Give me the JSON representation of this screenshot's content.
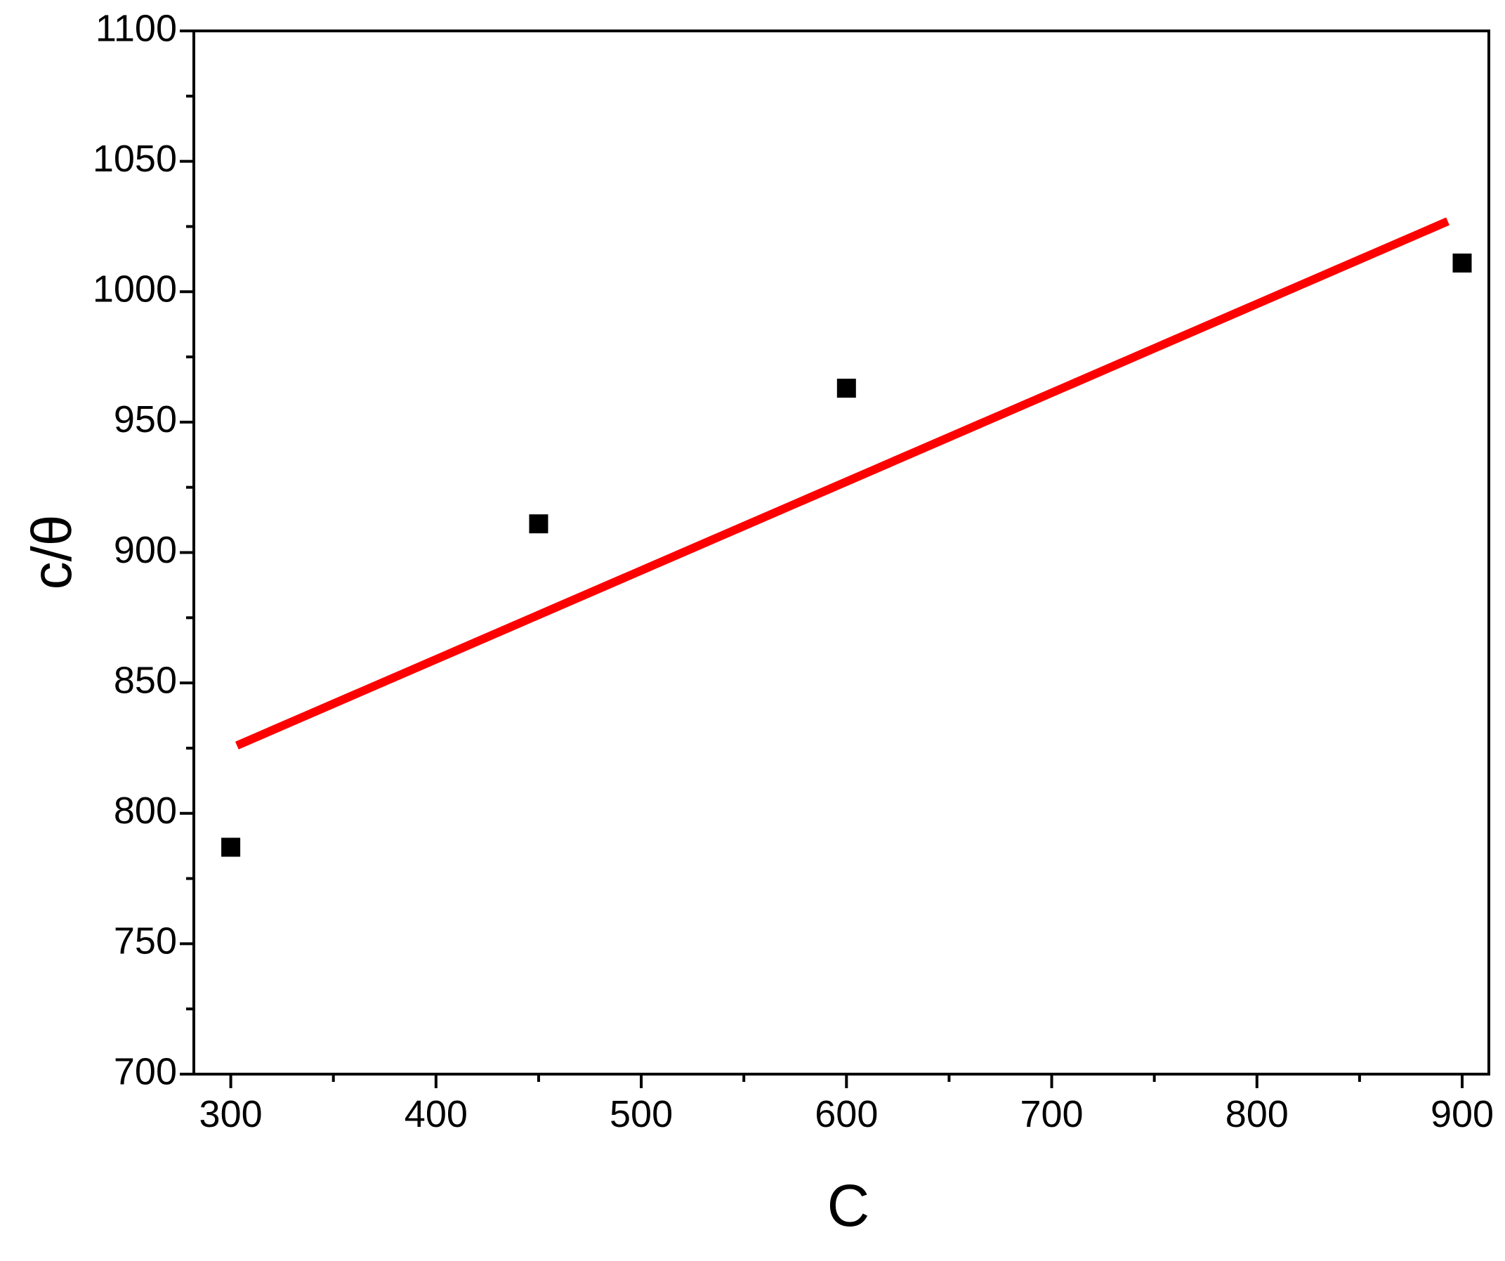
{
  "chart_data": {
    "type": "scatter",
    "x_label": "C",
    "y_label": "c/θ",
    "x": [
      300,
      450,
      600,
      900
    ],
    "values": [
      787,
      911,
      963,
      1011
    ],
    "color": "#000000",
    "fit": {
      "x": [
        303,
        893
      ],
      "values": [
        826,
        1027
      ],
      "color": "#ff0000"
    },
    "xlim": [
      282,
      913
    ],
    "ylim": [
      700,
      1100
    ],
    "xticks": [
      300,
      400,
      500,
      600,
      700,
      800,
      900
    ],
    "yticks": [
      700,
      750,
      800,
      850,
      900,
      950,
      1000,
      1050,
      1100
    ],
    "xminorticks": [
      350,
      450,
      550,
      650,
      750,
      850
    ],
    "yminorticks": [
      725,
      775,
      825,
      875,
      925,
      975,
      1025,
      1075
    ]
  }
}
